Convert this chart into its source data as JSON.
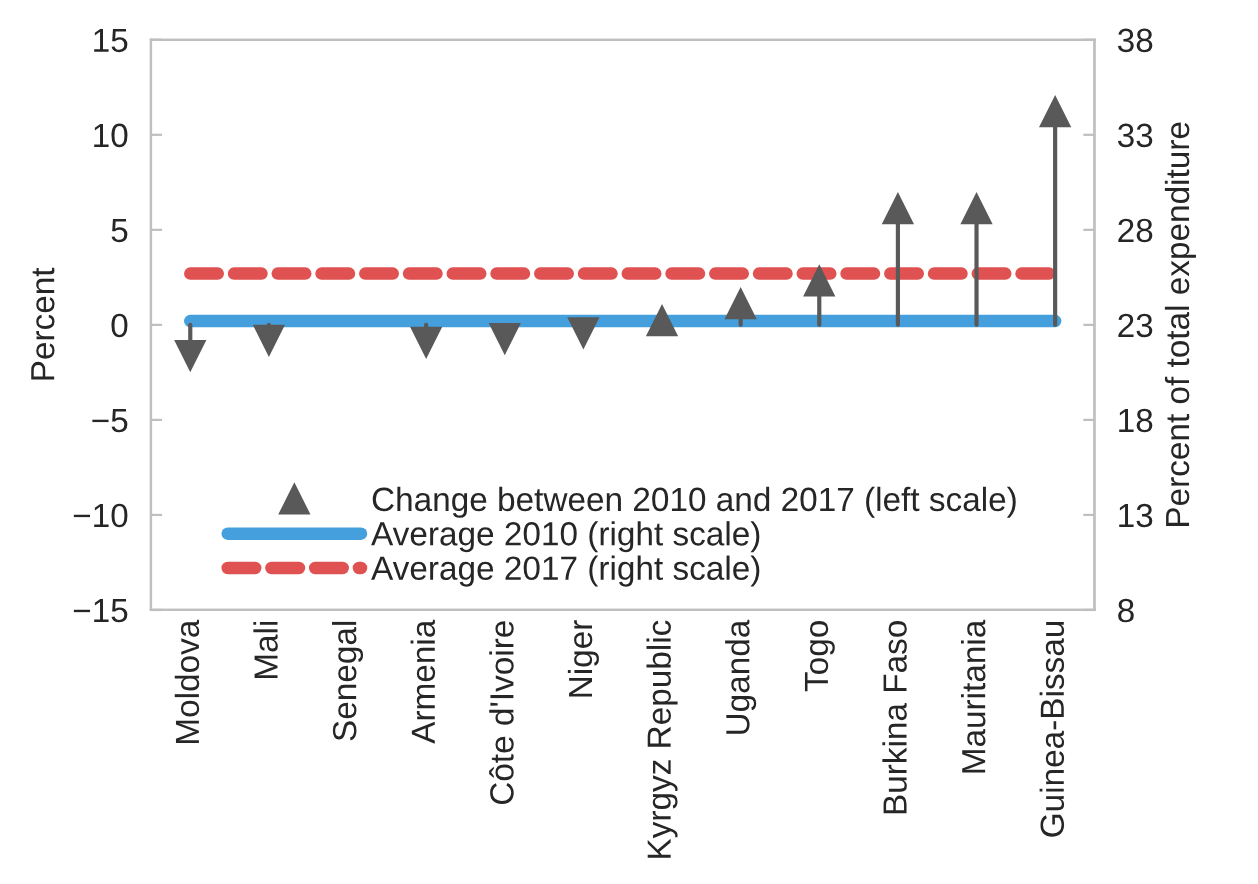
{
  "chart_data": {
    "type": "line",
    "ylabel": "Percent",
    "y2label": "Percent of total expenditure",
    "categories": [
      "Moldova",
      "Mali",
      "Senegal",
      "Armenia",
      "Côte d'Ivoire",
      "Niger",
      "Kyrgyz Republic",
      "Uganda",
      "Togo",
      "Burkina Faso",
      "Mauritania",
      "Guinea-Bissau"
    ],
    "series": [
      {
        "name": "Change between 2010 and 2017 (left scale)",
        "type": "lollipop",
        "color": "#595959",
        "marker": "triangle",
        "values": [
          -1.6,
          -0.8,
          null,
          -0.9,
          -0.7,
          -0.4,
          0.2,
          1.1,
          2.3,
          6.1,
          6.1,
          11.2
        ]
      },
      {
        "name": "Average 2010 (right scale)",
        "axis": "y2",
        "color": "#449fdc",
        "line_style": "solid",
        "values": [
          23.2,
          23.2,
          23.2,
          23.2,
          23.2,
          23.2,
          23.2,
          23.2,
          23.2,
          23.2,
          23.2,
          23.2
        ]
      },
      {
        "name": "Average 2017 (right scale)",
        "axis": "y2",
        "color": "#e05252",
        "line_style": "dashed",
        "values": [
          25.7,
          25.7,
          25.7,
          25.7,
          25.7,
          25.7,
          25.7,
          25.7,
          25.7,
          25.7,
          25.7,
          25.7
        ]
      }
    ],
    "ylim": [
      -15,
      15
    ],
    "yticks": [
      -15,
      -10,
      -5,
      0,
      5,
      10,
      15
    ],
    "y2lim": [
      8,
      38
    ],
    "y2ticks": [
      8,
      13,
      18,
      23,
      28,
      33,
      38
    ],
    "legend": "bottom",
    "grid": false
  }
}
